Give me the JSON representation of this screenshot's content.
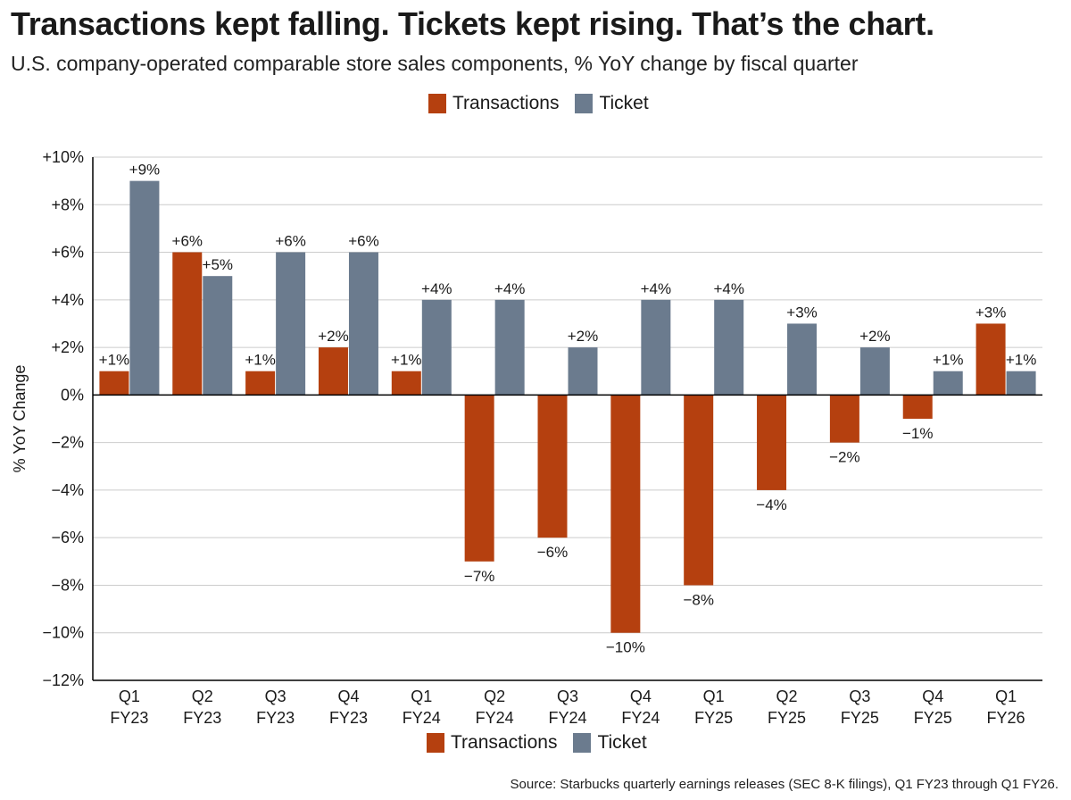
{
  "title": "Transactions kept falling. Tickets kept rising. That’s the chart.",
  "subtitle": "U.S. company-operated comparable store sales components, % YoY change by fiscal quarter",
  "source": "Source: Starbucks quarterly earnings releases (SEC 8-K filings), Q1 FY23 through Q1 FY26.",
  "colors": {
    "transactions": "#b5400f",
    "ticket": "#6b7b8e",
    "grid": "#cccccc",
    "axis": "#000000"
  },
  "legend": [
    "Transactions",
    "Ticket"
  ],
  "chart_data": {
    "type": "bar",
    "ylabel": "% YoY Change",
    "ylim": [
      -12,
      10
    ],
    "yticks": [
      10,
      8,
      6,
      4,
      2,
      0,
      -2,
      -4,
      -6,
      -8,
      -10,
      -12
    ],
    "ytick_labels": [
      "+10%",
      "+8%",
      "+6%",
      "+4%",
      "+2%",
      "0%",
      "−2%",
      "−4%",
      "−6%",
      "−8%",
      "−10%",
      "−12%"
    ],
    "grid": true,
    "legend_position": "top and bottom center",
    "categories": [
      [
        "Q1",
        "FY23"
      ],
      [
        "Q2",
        "FY23"
      ],
      [
        "Q3",
        "FY23"
      ],
      [
        "Q4",
        "FY23"
      ],
      [
        "Q1",
        "FY24"
      ],
      [
        "Q2",
        "FY24"
      ],
      [
        "Q3",
        "FY24"
      ],
      [
        "Q4",
        "FY24"
      ],
      [
        "Q1",
        "FY25"
      ],
      [
        "Q2",
        "FY25"
      ],
      [
        "Q3",
        "FY25"
      ],
      [
        "Q4",
        "FY25"
      ],
      [
        "Q1",
        "FY26"
      ]
    ],
    "series": [
      {
        "name": "Transactions",
        "values": [
          1,
          6,
          1,
          2,
          1,
          -7,
          -6,
          -10,
          -8,
          -4,
          -2,
          -1,
          3
        ],
        "labels": [
          "+1%",
          "+6%",
          "+1%",
          "+2%",
          "+1%",
          "−7%",
          "−6%",
          "−10%",
          "−8%",
          "−4%",
          "−2%",
          "−1%",
          "+3%"
        ]
      },
      {
        "name": "Ticket",
        "values": [
          9,
          5,
          6,
          6,
          4,
          4,
          2,
          4,
          4,
          3,
          2,
          1,
          1
        ],
        "labels": [
          "+9%",
          "+5%",
          "+6%",
          "+6%",
          "+4%",
          "+4%",
          "+2%",
          "+4%",
          "+4%",
          "+3%",
          "+2%",
          "+1%",
          "+1%"
        ]
      }
    ]
  }
}
